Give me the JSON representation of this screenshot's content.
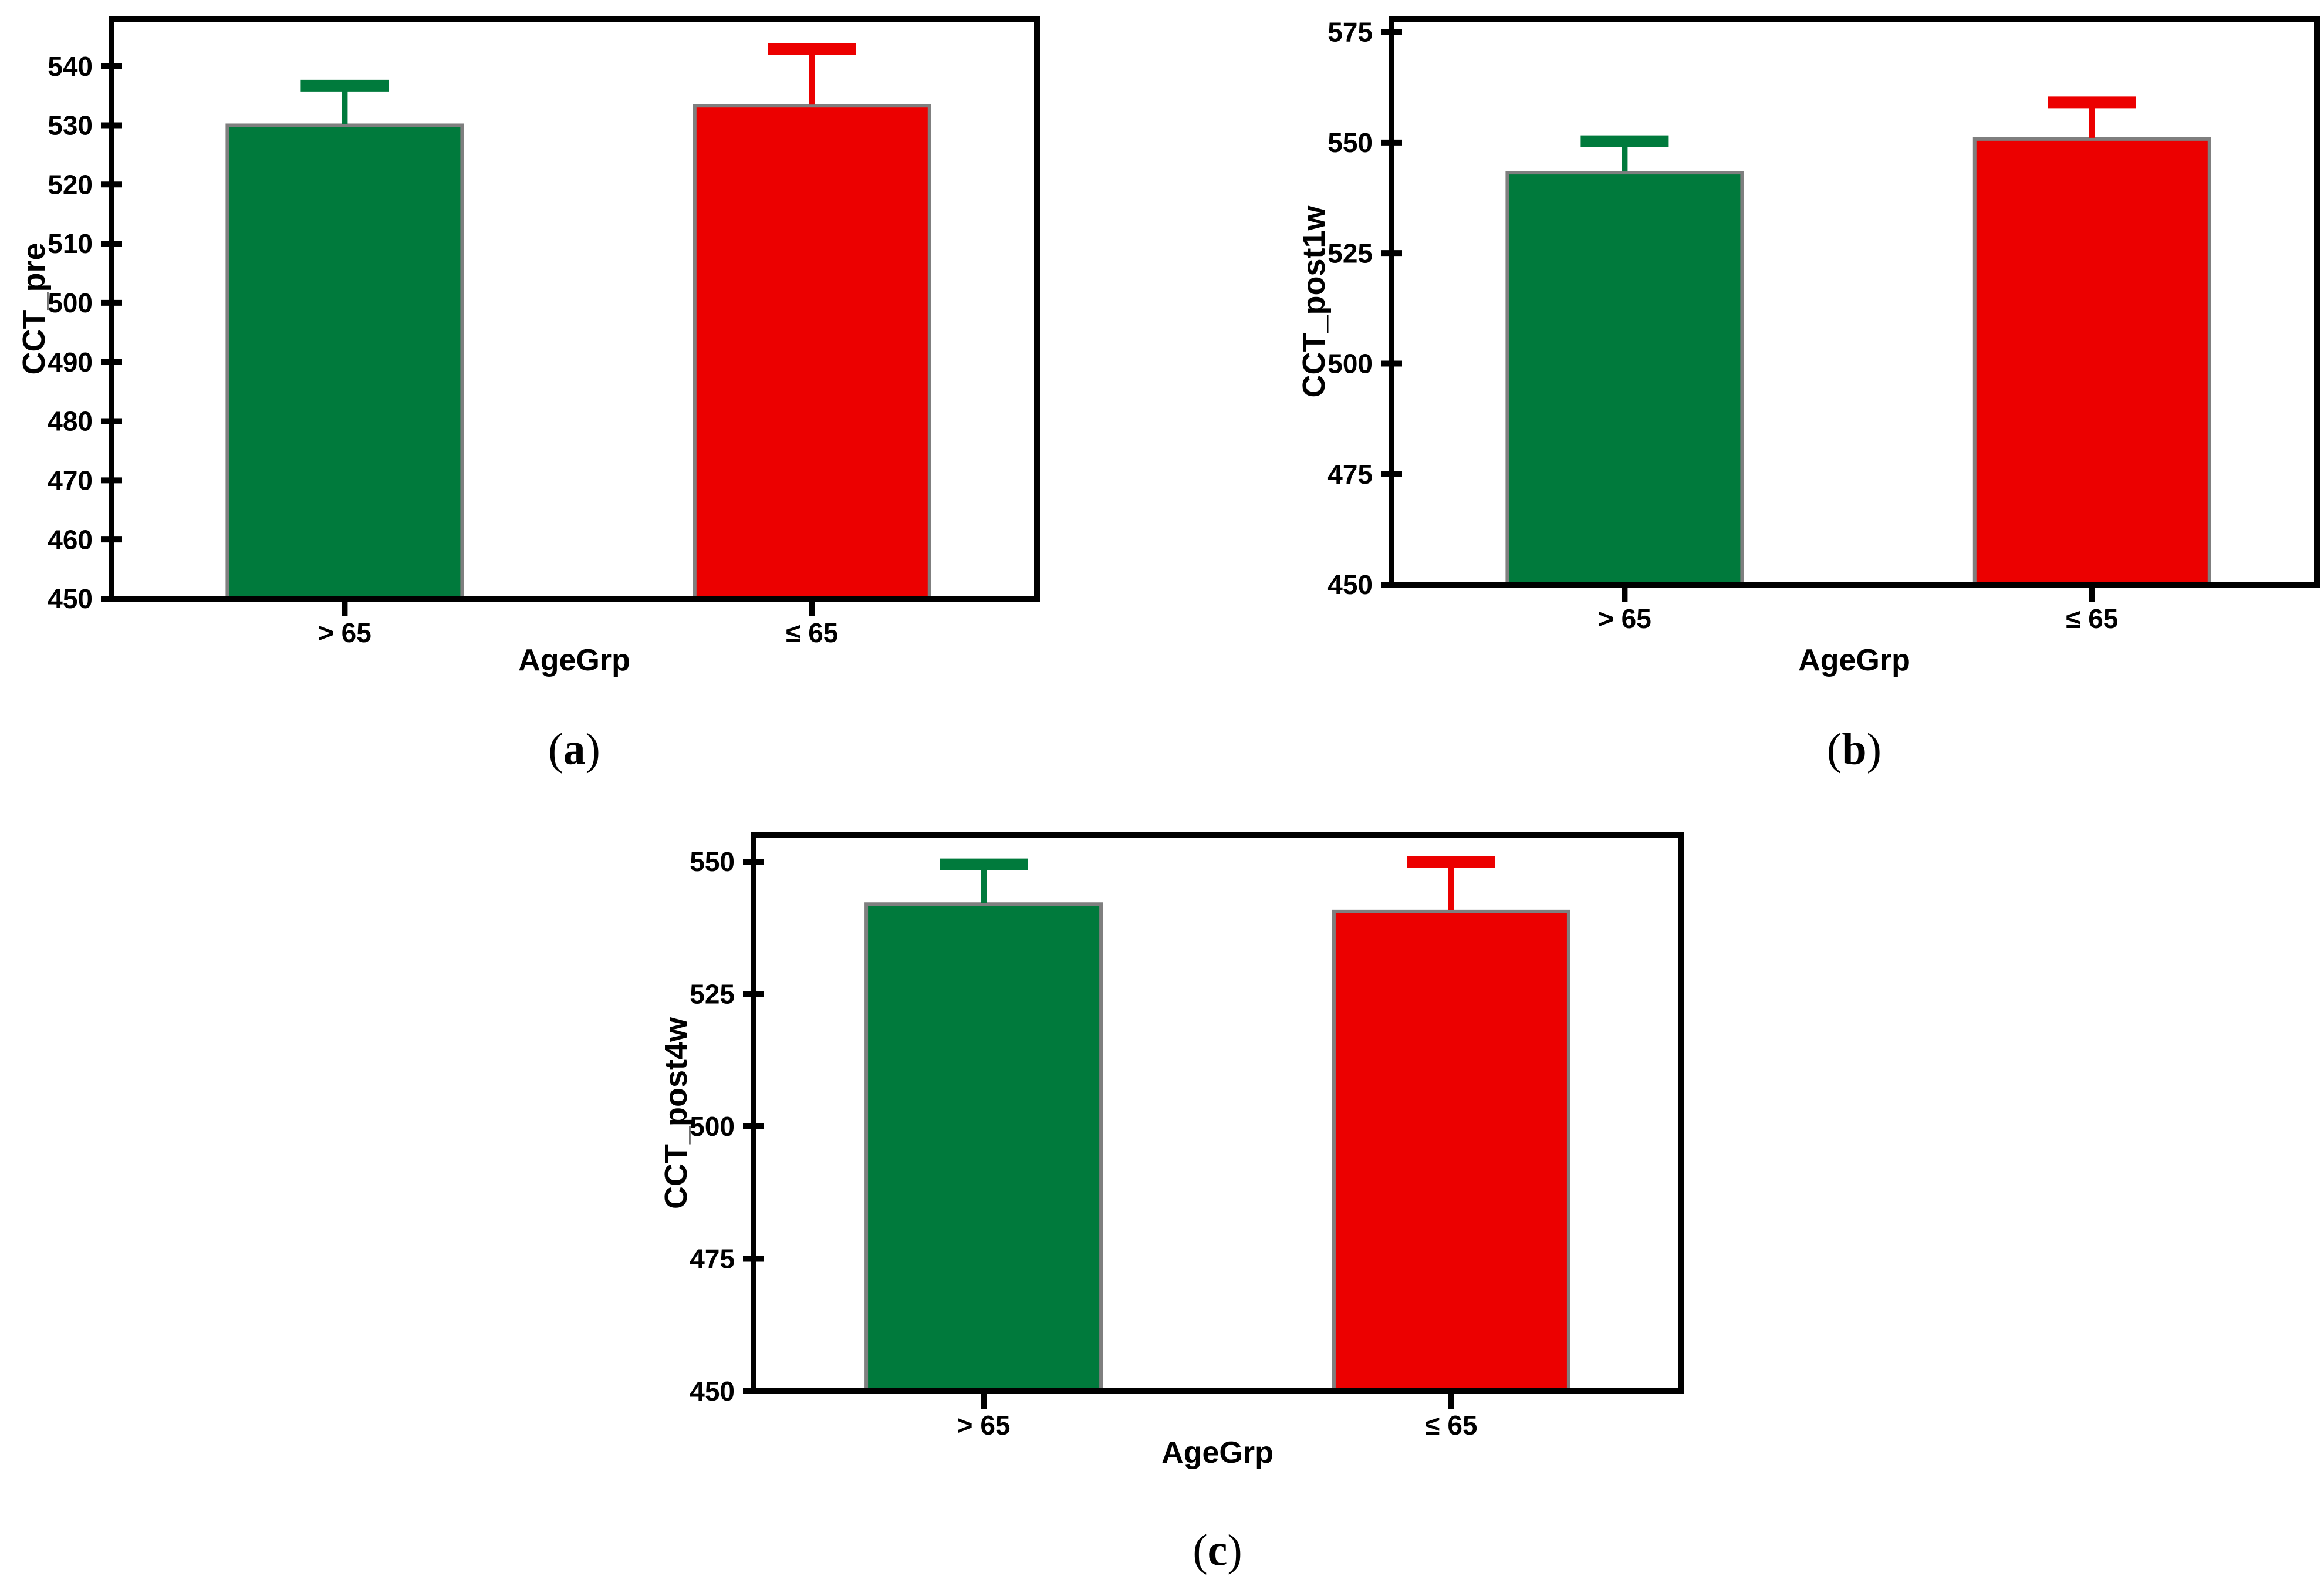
{
  "figure": {
    "title": "",
    "background": "#FFFFFF",
    "axis_color": "#000000",
    "bar_outline_color": "#7F7F7F",
    "accent_green": "#007A3C",
    "accent_red": "#EC0000"
  },
  "chart_data": [
    {
      "type": "bar",
      "panel": "a",
      "caption": "(a)",
      "caption_prefix": "(",
      "caption_letter": "a",
      "caption_suffix": ")",
      "title": "",
      "xlabel": "AgeGrp",
      "ylabel": "CCT_pre",
      "categories": [
        "> 65",
        "≤ 65"
      ],
      "values": [
        530.0,
        533.3
      ],
      "error_upper_tops": [
        536.7,
        542.9
      ],
      "bar_colors": [
        "#007A3C",
        "#EC0000"
      ],
      "yticks": [
        450,
        460,
        470,
        480,
        490,
        500,
        510,
        520,
        530,
        540
      ],
      "ylim": [
        450,
        548
      ],
      "grid": false,
      "legend": null
    },
    {
      "type": "bar",
      "panel": "b",
      "caption": "(b)",
      "caption_prefix": "(",
      "caption_letter": "b",
      "caption_suffix": ")",
      "title": "",
      "xlabel": "AgeGrp",
      "ylabel": "CCT_post1w",
      "categories": [
        "> 65",
        "≤ 65"
      ],
      "values": [
        543.2,
        550.8
      ],
      "error_upper_tops": [
        550.3,
        559.1
      ],
      "bar_colors": [
        "#007A3C",
        "#EC0000"
      ],
      "yticks": [
        450,
        475,
        500,
        525,
        550,
        575
      ],
      "ylim": [
        450,
        578
      ],
      "grid": false,
      "legend": null
    },
    {
      "type": "bar",
      "panel": "c",
      "caption": "(c)",
      "caption_prefix": "(",
      "caption_letter": "c",
      "caption_suffix": ")",
      "title": "",
      "xlabel": "AgeGrp",
      "ylabel": "CCT_post4w",
      "categories": [
        "> 65",
        "≤ 65"
      ],
      "values": [
        542.0,
        540.6
      ],
      "error_upper_tops": [
        549.5,
        550.0
      ],
      "bar_colors": [
        "#007A3C",
        "#EC0000"
      ],
      "yticks": [
        450,
        475,
        500,
        525,
        550
      ],
      "ylim": [
        450,
        555
      ],
      "grid": false,
      "legend": null
    }
  ]
}
